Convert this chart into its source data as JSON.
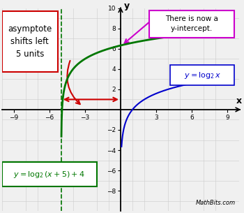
{
  "xlim": [
    -10,
    10
  ],
  "ylim": [
    -10,
    10
  ],
  "grid_color": "#cccccc",
  "bg_color": "#f0f0f0",
  "asymptote_x": -5,
  "asymptote_color": "#007700",
  "log2_color": "#0000cc",
  "shifted_color": "#007700",
  "red_color": "#cc0000",
  "magenta_color": "#cc00cc",
  "xlabel": "x",
  "ylabel": "y",
  "mathbits_text": "MathBits.com"
}
